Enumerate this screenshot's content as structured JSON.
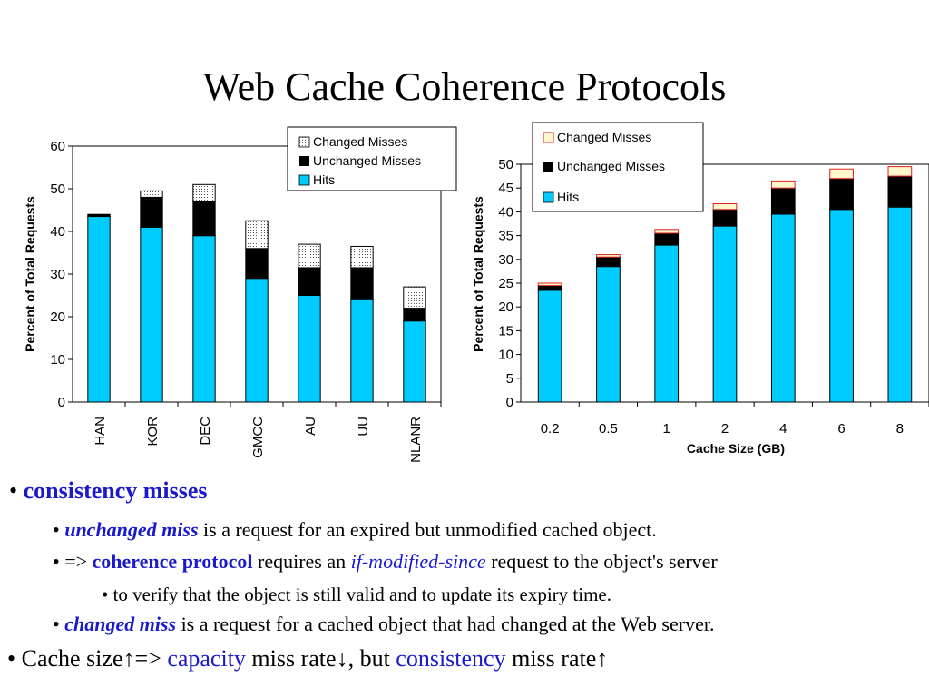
{
  "title": "Web Cache Coherence Protocols",
  "chart_data": [
    {
      "type": "bar",
      "stacked": true,
      "categories": [
        "HAN",
        "KOR",
        "DEC",
        "GMCC",
        "AU",
        "UU",
        "NLANR"
      ],
      "series": [
        {
          "name": "Hits",
          "color": "#00ccff",
          "values": [
            43.5,
            41,
            39,
            29,
            25,
            24,
            19
          ]
        },
        {
          "name": "Unchanged Misses",
          "color": "#000000",
          "values": [
            0.5,
            7,
            8,
            7,
            6.5,
            7.5,
            3
          ]
        },
        {
          "name": "Changed Misses",
          "pattern": "dotted",
          "values": [
            0,
            1.5,
            4,
            6.5,
            5.5,
            5,
            5
          ]
        }
      ],
      "ylabel": "Percent of Total Requests",
      "xlabel": "",
      "ylim": [
        0,
        60
      ],
      "yticks": [
        "0",
        "10",
        "20",
        "30",
        "40",
        "50",
        "60"
      ],
      "legend": "top-right"
    },
    {
      "type": "bar",
      "stacked": true,
      "categories": [
        "0.2",
        "0.5",
        "1",
        "2",
        "4",
        "6",
        "8"
      ],
      "series": [
        {
          "name": "Hits",
          "color": "#00ccff",
          "values": [
            23.5,
            28.5,
            33,
            37,
            39.5,
            40.5,
            41
          ]
        },
        {
          "name": "Unchanged Misses",
          "color": "#000000",
          "values": [
            1,
            2,
            2.5,
            3.5,
            5.5,
            6.5,
            6.5
          ]
        },
        {
          "name": "Changed Misses",
          "color": "#fff8cc",
          "values": [
            0.5,
            0.5,
            0.8,
            1.2,
            1.5,
            2,
            2
          ]
        }
      ],
      "ylabel": "Percent of Total Requests",
      "xlabel": "Cache Size (GB)",
      "ylim": [
        0,
        50
      ],
      "yticks": [
        "0",
        "5",
        "10",
        "15",
        "20",
        "25",
        "30",
        "35",
        "40",
        "45",
        "50"
      ],
      "legend": "top-left"
    }
  ],
  "bullets": {
    "b1": {
      "dot": "•",
      "text": "consistency misses"
    },
    "b2": {
      "dot": "•",
      "term": "unchanged miss",
      "rest": " is a request for an expired but unmodified cached object."
    },
    "b3": {
      "dot": "•",
      "arrow": " =>",
      "term": "coherence protocol",
      "mid": " requires an ",
      "term2": "if-modified-since",
      "rest": " request to the object's server"
    },
    "b4": {
      "text": "• to verify that the object is still valid and to update its expiry time."
    },
    "b5": {
      "dot": "•",
      "term": "changed miss",
      "rest": " is a request for a cached object that had changed at the Web server."
    },
    "b6": {
      "pre": "• Cache size↑=> ",
      "term": "capacity",
      "mid": " miss rate↓, but ",
      "term2": "consistency",
      "rest": " miss rate↑"
    }
  }
}
